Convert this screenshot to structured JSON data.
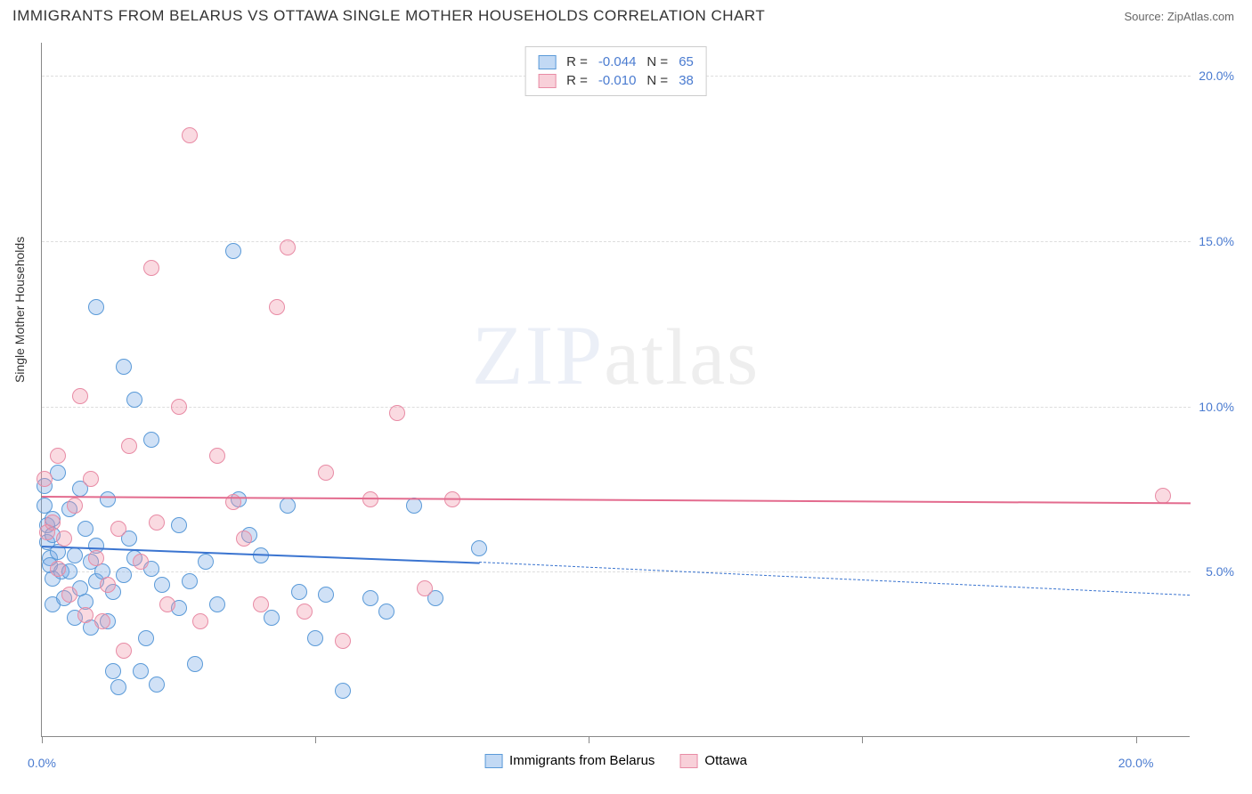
{
  "title": "IMMIGRANTS FROM BELARUS VS OTTAWA SINGLE MOTHER HOUSEHOLDS CORRELATION CHART",
  "source_label": "Source: ZipAtlas.com",
  "ylabel": "Single Mother Households",
  "watermark": {
    "main": "ZIP",
    "sub": "atlas"
  },
  "chart": {
    "type": "scatter",
    "xlim": [
      0,
      21
    ],
    "ylim": [
      0,
      21
    ],
    "background_color": "#ffffff",
    "grid_color": "#dddddd",
    "axis_color": "#888888",
    "tick_color": "#4a7bd0",
    "label_fontsize": 14,
    "title_fontsize": 17,
    "point_radius": 9,
    "y_grid": [
      5,
      10,
      15,
      20
    ],
    "y_tick_labels": [
      "5.0%",
      "10.0%",
      "15.0%",
      "20.0%"
    ],
    "x_ticks": [
      0,
      5,
      10,
      15,
      20
    ],
    "x_tick_labels": [
      "0.0%",
      "20.0%"
    ],
    "x_tick_label_positions": [
      0,
      20
    ]
  },
  "series": [
    {
      "key": "belarus",
      "label": "Immigrants from Belarus",
      "color_fill": "rgba(120,170,230,0.35)",
      "color_stroke": "#5a9ad8",
      "trend_color": "#3a74d0",
      "R": "-0.044",
      "N": "65",
      "trend": {
        "x0": 0,
        "y0": 5.8,
        "x1": 8,
        "y1": 5.3,
        "x_dash_end": 21,
        "y_dash_end": 4.3
      },
      "points": [
        [
          0.05,
          7.6
        ],
        [
          0.05,
          7.0
        ],
        [
          0.1,
          6.4
        ],
        [
          0.1,
          5.9
        ],
        [
          0.15,
          5.4
        ],
        [
          0.15,
          5.2
        ],
        [
          0.2,
          6.6
        ],
        [
          0.2,
          6.1
        ],
        [
          0.2,
          4.8
        ],
        [
          0.2,
          4.0
        ],
        [
          0.3,
          8.0
        ],
        [
          0.3,
          5.6
        ],
        [
          0.35,
          5.0
        ],
        [
          0.4,
          4.2
        ],
        [
          0.5,
          6.9
        ],
        [
          0.5,
          5.0
        ],
        [
          0.6,
          3.6
        ],
        [
          0.6,
          5.5
        ],
        [
          0.7,
          7.5
        ],
        [
          0.7,
          4.5
        ],
        [
          0.8,
          6.3
        ],
        [
          0.8,
          4.1
        ],
        [
          0.9,
          5.3
        ],
        [
          0.9,
          3.3
        ],
        [
          1.0,
          13.0
        ],
        [
          1.0,
          5.8
        ],
        [
          1.0,
          4.7
        ],
        [
          1.1,
          5.0
        ],
        [
          1.2,
          7.2
        ],
        [
          1.2,
          3.5
        ],
        [
          1.3,
          2.0
        ],
        [
          1.3,
          4.4
        ],
        [
          1.4,
          1.5
        ],
        [
          1.5,
          11.2
        ],
        [
          1.5,
          4.9
        ],
        [
          1.6,
          6.0
        ],
        [
          1.7,
          10.2
        ],
        [
          1.7,
          5.4
        ],
        [
          1.8,
          2.0
        ],
        [
          1.9,
          3.0
        ],
        [
          2.0,
          9.0
        ],
        [
          2.0,
          5.1
        ],
        [
          2.1,
          1.6
        ],
        [
          2.2,
          4.6
        ],
        [
          2.5,
          3.9
        ],
        [
          2.5,
          6.4
        ],
        [
          2.7,
          4.7
        ],
        [
          2.8,
          2.2
        ],
        [
          3.0,
          5.3
        ],
        [
          3.2,
          4.0
        ],
        [
          3.5,
          14.7
        ],
        [
          3.6,
          7.2
        ],
        [
          3.8,
          6.1
        ],
        [
          4.0,
          5.5
        ],
        [
          4.2,
          3.6
        ],
        [
          4.5,
          7.0
        ],
        [
          4.7,
          4.4
        ],
        [
          5.0,
          3.0
        ],
        [
          5.2,
          4.3
        ],
        [
          5.5,
          1.4
        ],
        [
          6.0,
          4.2
        ],
        [
          6.3,
          3.8
        ],
        [
          6.8,
          7.0
        ],
        [
          7.2,
          4.2
        ],
        [
          8.0,
          5.7
        ]
      ]
    },
    {
      "key": "ottawa",
      "label": "Ottawa",
      "color_fill": "rgba(240,150,170,0.35)",
      "color_stroke": "#e88ba5",
      "trend_color": "#e36b8e",
      "R": "-0.010",
      "N": "38",
      "trend": {
        "x0": 0,
        "y0": 7.3,
        "x1": 21,
        "y1": 7.1
      },
      "points": [
        [
          0.05,
          7.8
        ],
        [
          0.1,
          6.2
        ],
        [
          0.2,
          6.5
        ],
        [
          0.3,
          5.1
        ],
        [
          0.3,
          8.5
        ],
        [
          0.4,
          6.0
        ],
        [
          0.5,
          4.3
        ],
        [
          0.6,
          7.0
        ],
        [
          0.7,
          10.3
        ],
        [
          0.8,
          3.7
        ],
        [
          0.9,
          7.8
        ],
        [
          1.0,
          5.4
        ],
        [
          1.1,
          3.5
        ],
        [
          1.2,
          4.6
        ],
        [
          1.4,
          6.3
        ],
        [
          1.5,
          2.6
        ],
        [
          1.6,
          8.8
        ],
        [
          1.8,
          5.3
        ],
        [
          2.0,
          14.2
        ],
        [
          2.1,
          6.5
        ],
        [
          2.3,
          4.0
        ],
        [
          2.5,
          10.0
        ],
        [
          2.7,
          18.2
        ],
        [
          2.9,
          3.5
        ],
        [
          3.2,
          8.5
        ],
        [
          3.5,
          7.1
        ],
        [
          3.7,
          6.0
        ],
        [
          4.0,
          4.0
        ],
        [
          4.3,
          13.0
        ],
        [
          4.5,
          14.8
        ],
        [
          4.8,
          3.8
        ],
        [
          5.2,
          8.0
        ],
        [
          5.5,
          2.9
        ],
        [
          6.0,
          7.2
        ],
        [
          6.5,
          9.8
        ],
        [
          7.0,
          4.5
        ],
        [
          7.5,
          7.2
        ],
        [
          20.5,
          7.3
        ]
      ]
    }
  ],
  "legend_top": {
    "R_label": "R =",
    "N_label": "N ="
  }
}
